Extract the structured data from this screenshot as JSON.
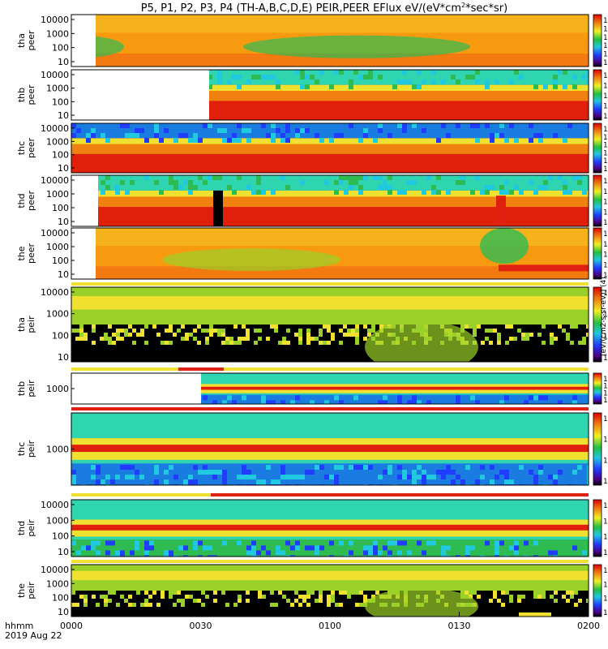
{
  "title": "P5, P1, P2, P3, P4 (TH-A,B,C,D,E) PEIR,PEER EFlux eV/(eV*cm",
  "title_sup": "2",
  "title_end": "*sec*sr)",
  "x_axis": {
    "row1_label": "hhmm",
    "row2_label": "2019 Aug 22",
    "ticks": [
      "0000",
      "0030",
      "0100",
      "0130",
      "0200"
    ]
  },
  "colorbar_unit_label": "[eV/(cm2-s-sr-eV)] (4)",
  "chart_data": [
    {
      "type": "heatmap",
      "ylabel": [
        "tha",
        "peer"
      ],
      "yticks": [
        "10000",
        "1000",
        "100",
        "10"
      ],
      "colorbar_ticks": [
        "10",
        "10",
        "10",
        "10",
        "10",
        "10"
      ],
      "colorbar_exps": [
        "8",
        "7",
        "6",
        "5",
        "4",
        "3"
      ],
      "colors": {
        "base": "#f79a10",
        "low": "#2dbb52",
        "high": "#f0e030"
      }
    },
    {
      "type": "heatmap",
      "ylabel": [
        "thb",
        "peer"
      ],
      "yticks": [
        "10000",
        "1000",
        "100",
        "10"
      ],
      "colorbar_ticks": [
        "10",
        "10",
        "10",
        "10",
        "10"
      ],
      "colorbar_exps": [
        "8",
        "6",
        "4",
        "2",
        "0"
      ],
      "colors": {
        "top": "#2fd5b0",
        "mid": "#f0e030",
        "low": "#e0200a"
      }
    },
    {
      "type": "heatmap",
      "ylabel": [
        "thc",
        "peer"
      ],
      "yticks": [
        "10000",
        "1000",
        "100",
        "10"
      ],
      "colorbar_ticks": [
        "10",
        "10",
        "10",
        "10",
        "10",
        "10"
      ],
      "colorbar_exps": [
        "7",
        "6",
        "5",
        "4",
        "3",
        "2"
      ],
      "colors": {
        "top": "#1a7be0",
        "mid": "#f0e030",
        "low": "#e0200a"
      }
    },
    {
      "type": "heatmap",
      "ylabel": [
        "thd",
        "peer"
      ],
      "yticks": [
        "10000",
        "1000",
        "100",
        "10"
      ],
      "colorbar_ticks": [
        "10",
        "10",
        "10",
        "10",
        "10"
      ],
      "colorbar_exps": [
        "8",
        "6",
        "4",
        "2",
        "0"
      ],
      "colors": {
        "top": "#2fd5b0",
        "mid": "#f0e030",
        "low": "#e0200a"
      }
    },
    {
      "type": "heatmap",
      "ylabel": [
        "the",
        "peer"
      ],
      "yticks": [
        "10000",
        "1000",
        "100",
        "10"
      ],
      "colorbar_ticks": [
        "10",
        "10",
        "10",
        "10",
        "10"
      ],
      "colorbar_exps": [
        "8",
        "6",
        "4",
        "2",
        "0"
      ],
      "colors": {
        "base": "#f79a10",
        "low": "#9ad028",
        "high": "#f0e030"
      }
    },
    {
      "type": "heatmap",
      "ylabel": [
        "tha",
        "peir"
      ],
      "yticks": [
        "10000",
        "1000",
        "100",
        "10"
      ],
      "colorbar_ticks": [
        "10",
        "10",
        "10",
        "10"
      ],
      "colorbar_exps": [
        "6",
        "4",
        "2",
        "0"
      ],
      "colors": {
        "top": "#f0e030",
        "mid": "#9ad028",
        "low": "#000000"
      }
    },
    {
      "type": "heatmap",
      "ylabel": [
        "thb",
        "peir"
      ],
      "yticks": [
        "1000"
      ],
      "colorbar_ticks": [
        "10",
        "10",
        "10",
        "10"
      ],
      "colorbar_exps": [
        "8",
        "6",
        "4",
        "2"
      ],
      "colors": {
        "top": "#2fd5b0",
        "mid": "#e0200a",
        "low": "#1a7be0"
      }
    },
    {
      "type": "heatmap",
      "ylabel": [
        "thc",
        "peir"
      ],
      "yticks": [
        "1000"
      ],
      "colorbar_ticks": [
        "10",
        "10",
        "10",
        "10"
      ],
      "colorbar_exps": [
        "6",
        "4",
        "2",
        "0"
      ],
      "colors": {
        "top": "#2fd5b0",
        "mid": "#e0200a",
        "low": "#1a7be0"
      }
    },
    {
      "type": "heatmap",
      "ylabel": [
        "thd",
        "peir"
      ],
      "yticks": [
        "10000",
        "1000",
        "100",
        "10"
      ],
      "colorbar_ticks": [
        "10",
        "10",
        "10",
        "10"
      ],
      "colorbar_exps": [
        "6",
        "4",
        "2",
        "0"
      ],
      "colors": {
        "top": "#9ad028",
        "mid": "#e0200a",
        "low": "#2dbb52"
      }
    },
    {
      "type": "heatmap",
      "ylabel": [
        "the",
        "peir"
      ],
      "yticks": [
        "10000",
        "1000",
        "100",
        "10"
      ],
      "colorbar_ticks": [
        "10",
        "10",
        "10",
        "10"
      ],
      "colorbar_exps": [
        "6",
        "4",
        "2",
        "0"
      ],
      "colors": {
        "top": "#f0e030",
        "mid": "#9ad028",
        "low": "#000000"
      }
    }
  ]
}
